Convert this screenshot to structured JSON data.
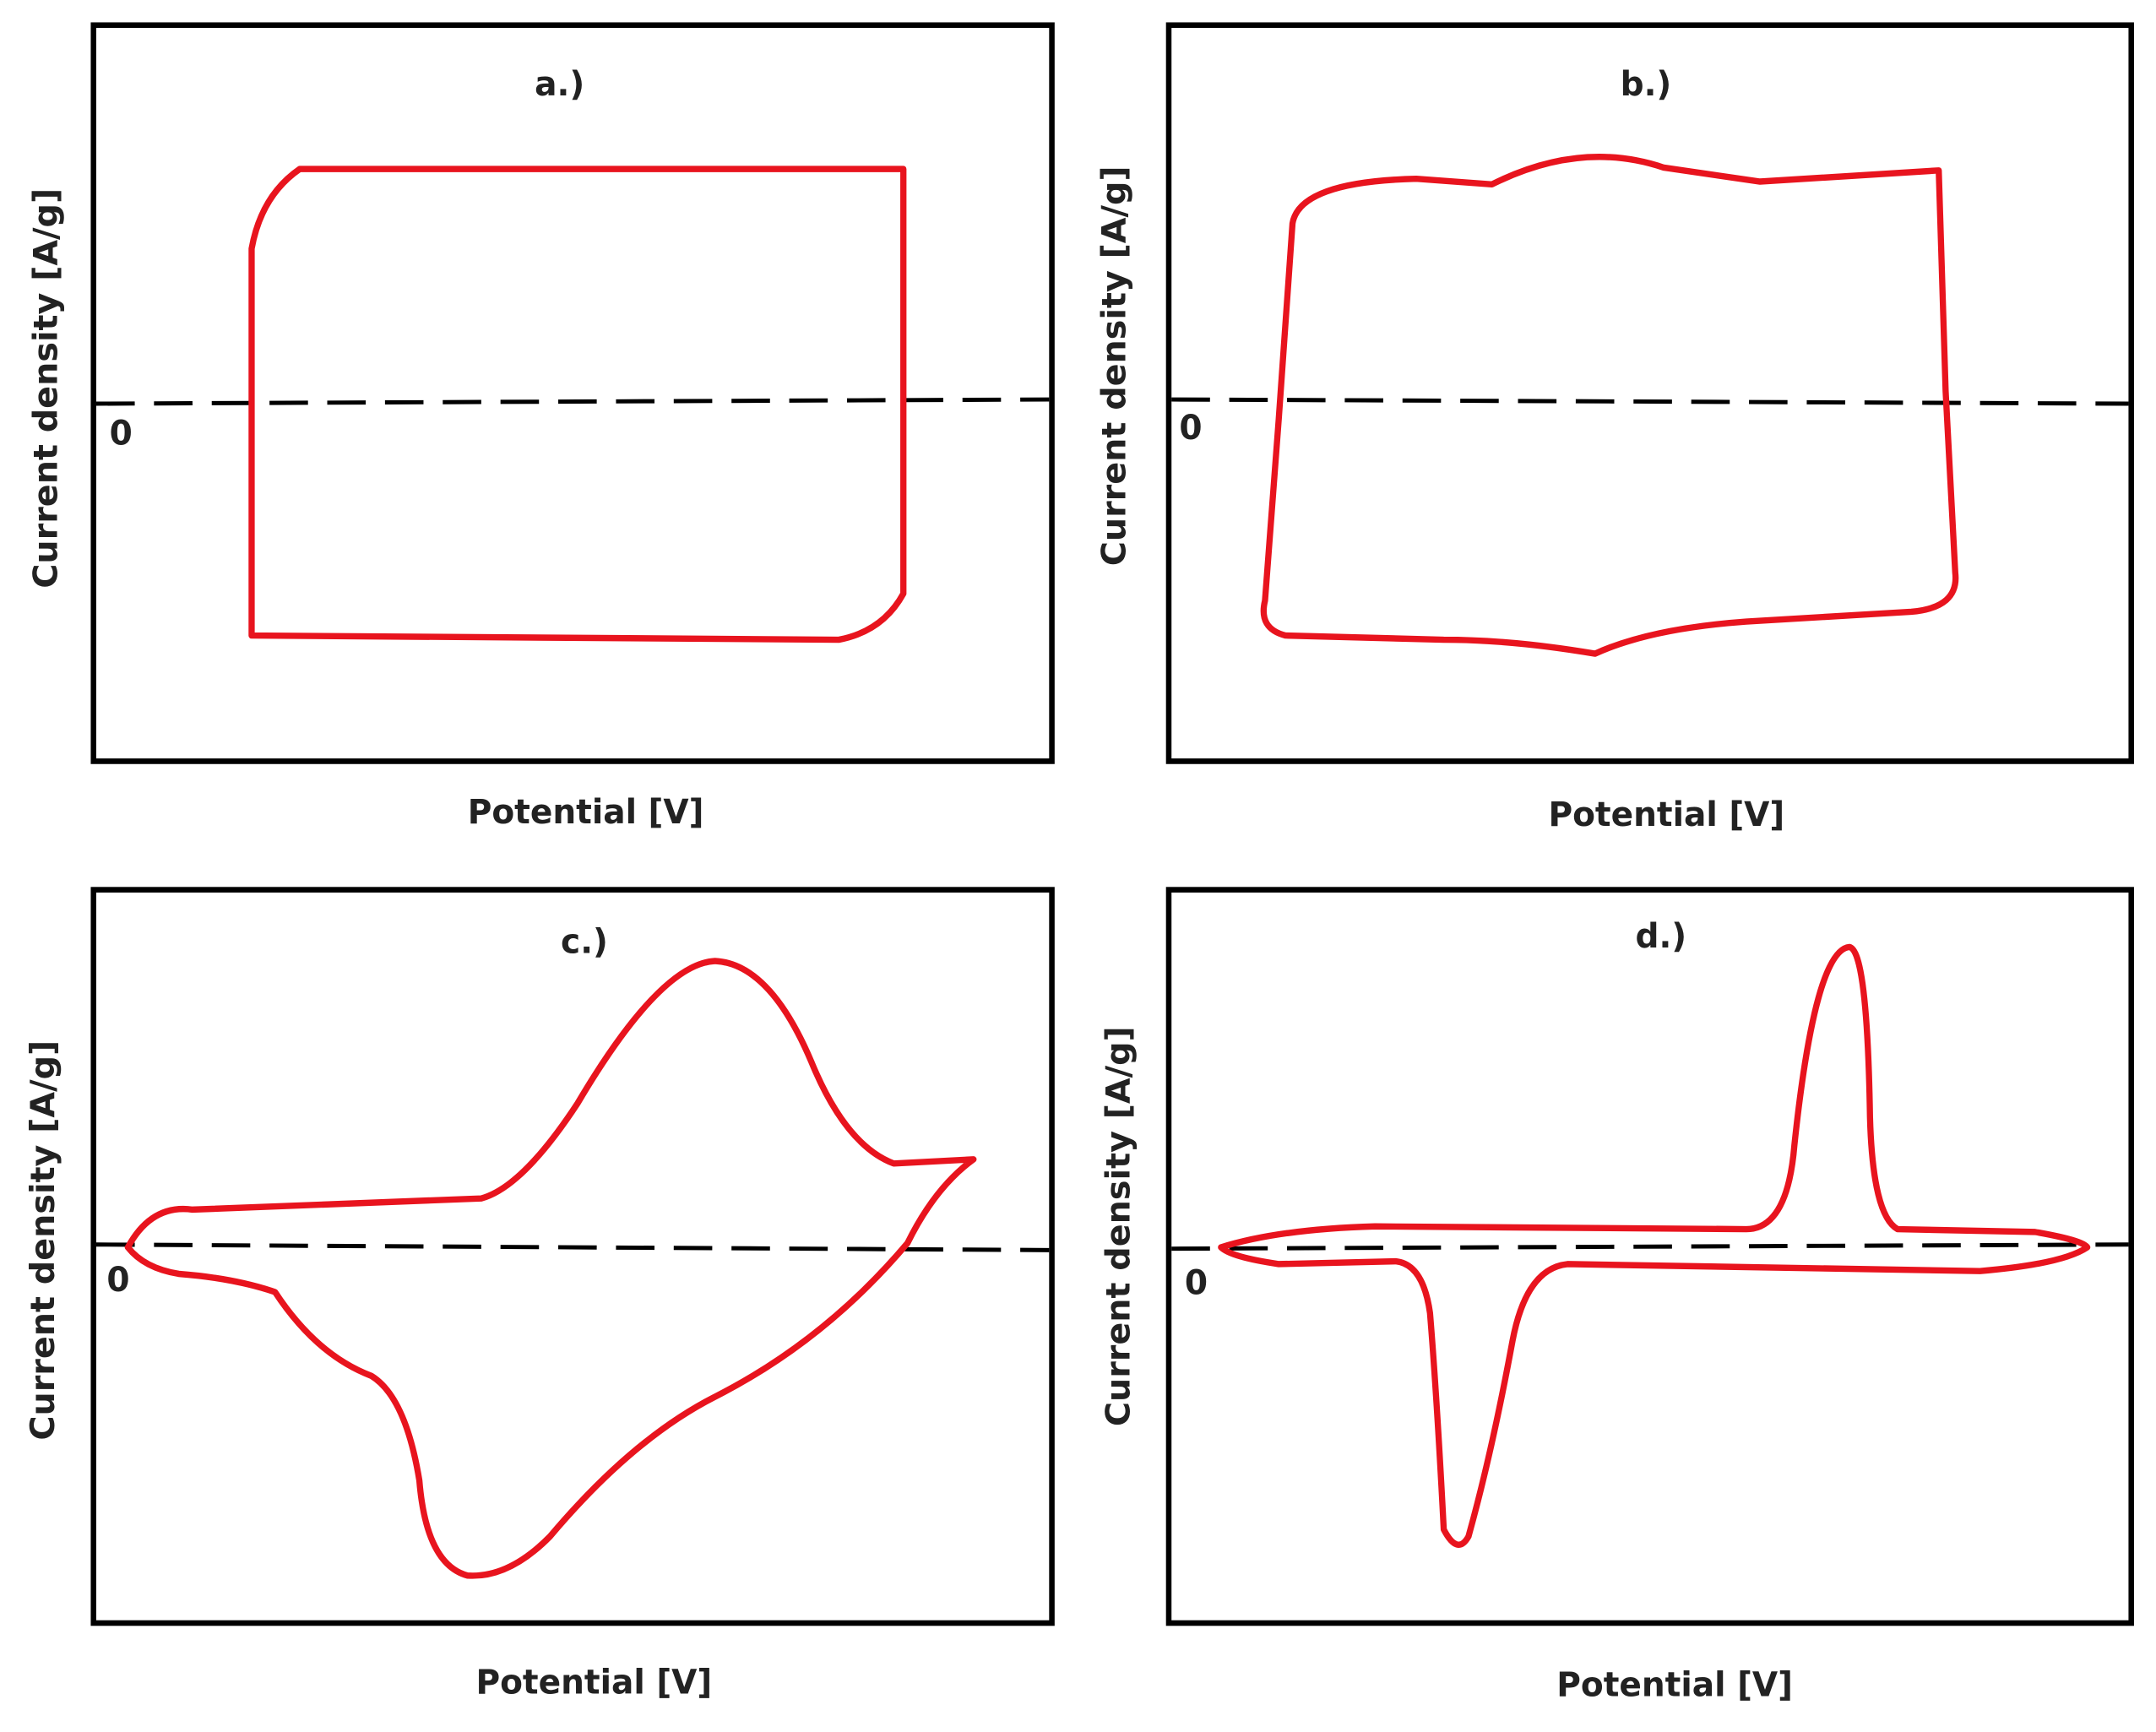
{
  "panels": [
    {
      "label": "a.)",
      "y_axis_label": "Current density [A/g]",
      "x_axis_label": "Potential [V]",
      "zero_label": "0"
    },
    {
      "label": "b.)",
      "y_axis_label": "Current density [A/g]",
      "x_axis_label": "Potential [V]",
      "zero_label": "0"
    },
    {
      "label": "c.)",
      "y_axis_label": "Current density [A/g]",
      "x_axis_label": "Potential [V]",
      "zero_label": "0"
    },
    {
      "label": "d.)",
      "y_axis_label": "Current density [A/g]",
      "x_axis_label": "Potential [V]",
      "zero_label": "0"
    }
  ]
}
